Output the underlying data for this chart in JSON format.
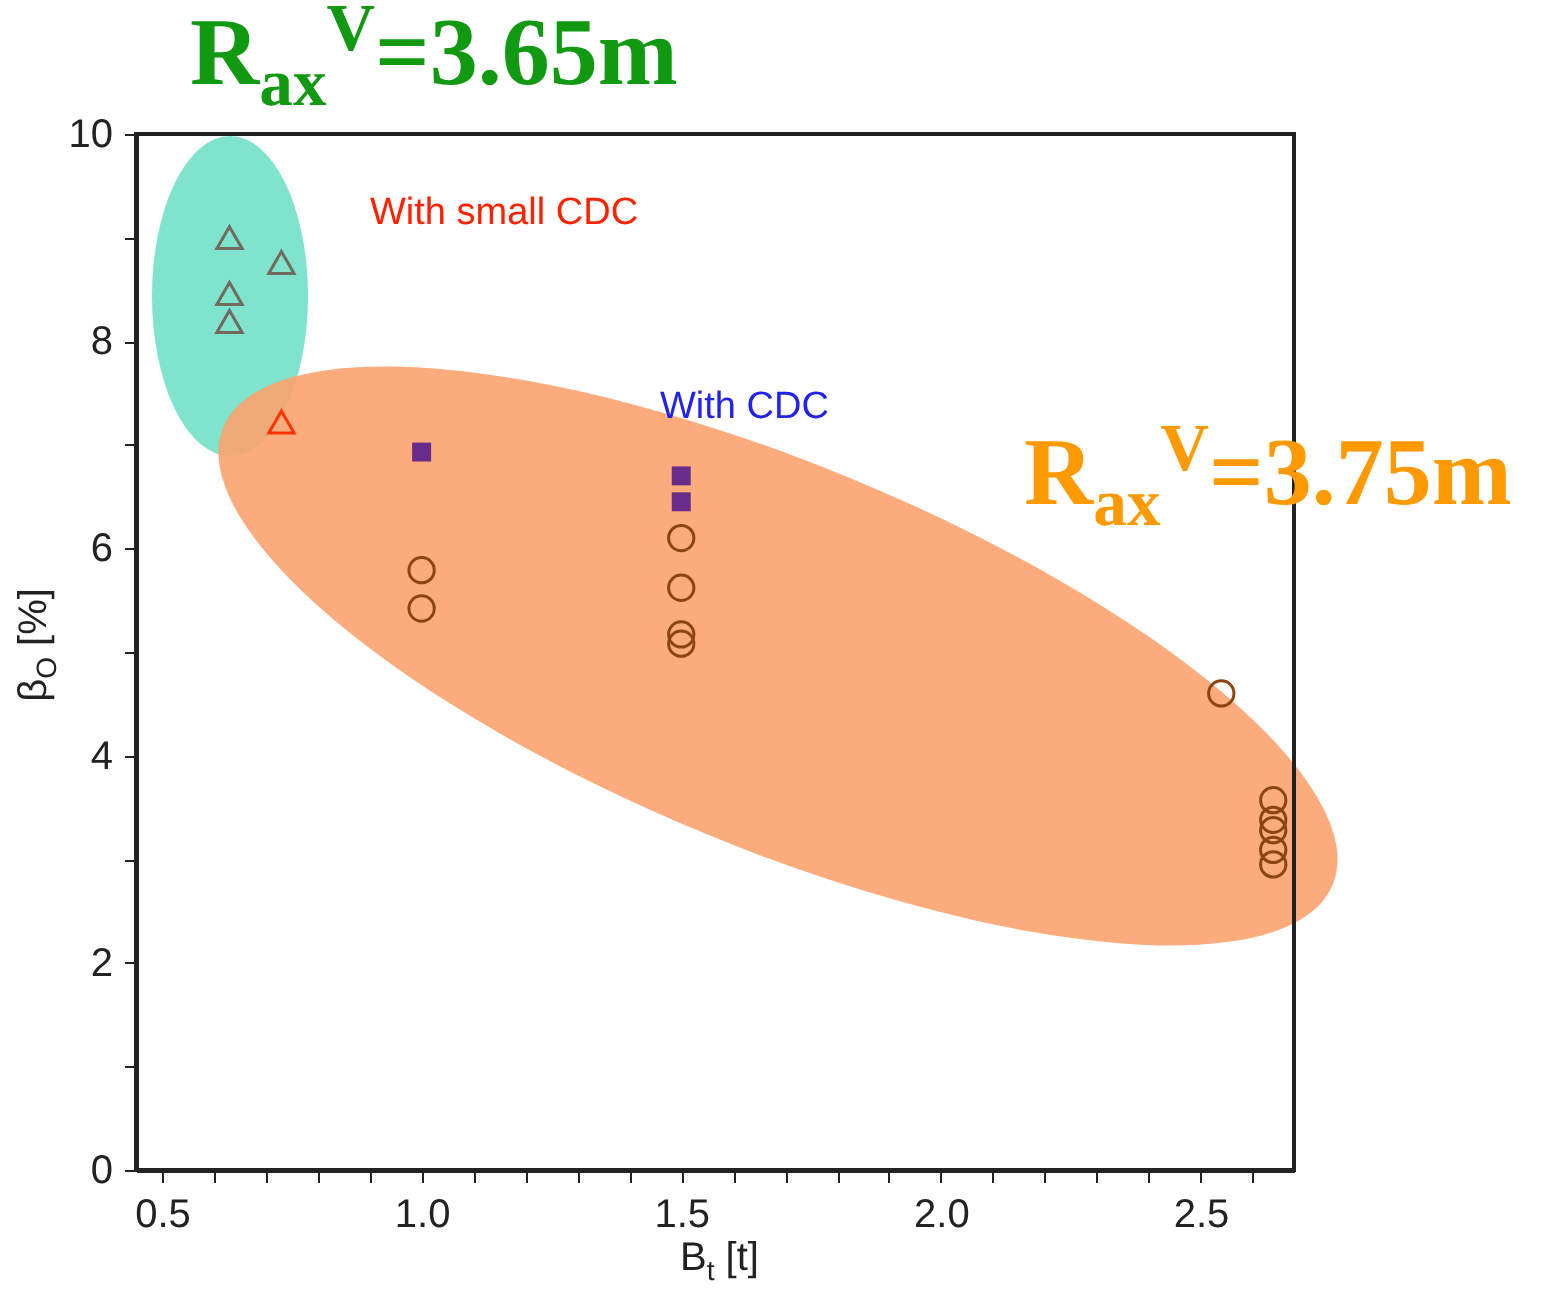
{
  "chart_data": {
    "type": "scatter",
    "xlabel": "B$_{t}$ [t]",
    "ylabel": "β$_{O}$ [%]",
    "xlim": [
      0.45,
      2.68
    ],
    "ylim": [
      0,
      10
    ],
    "xticks": [
      0.5,
      {
        "value": 0.6,
        "label": null
      },
      {
        "value": 0.7,
        "label": null
      },
      {
        "value": 0.8,
        "label": null
      },
      {
        "value": 0.9,
        "label": null
      },
      {
        "value": 1,
        "label": "1.0"
      },
      {
        "value": 1.1,
        "label": null
      },
      {
        "value": 1.2,
        "label": null
      },
      {
        "value": 1.3,
        "label": null
      },
      {
        "value": 1.4,
        "label": null
      },
      1.5,
      {
        "value": 1.6,
        "label": null
      },
      {
        "value": 1.7,
        "label": null
      },
      {
        "value": 1.8,
        "label": null
      },
      {
        "value": 1.9,
        "label": null
      },
      {
        "value": 2,
        "label": "2.0"
      },
      {
        "value": 2.1,
        "label": null
      },
      {
        "value": 2.2,
        "label": null
      },
      {
        "value": 2.3,
        "label": null
      },
      {
        "value": 2.4,
        "label": null
      },
      2.5,
      {
        "value": 2.6,
        "label": null
      }
    ],
    "yticks": [
      0,
      {
        "value": 1,
        "label": null
      },
      2,
      {
        "value": 3,
        "label": null
      },
      4,
      {
        "value": 5,
        "label": null
      },
      6,
      {
        "value": 7,
        "label": null
      },
      8,
      {
        "value": 9,
        "label": null
      },
      10
    ],
    "series": [
      {
        "color": "#6f6a5c",
        "marker": "triangle",
        "x": [
          0.63,
          0.63,
          0.63,
          0.73
        ],
        "values": [
          9.0,
          8.46,
          8.19,
          8.76
        ]
      },
      {
        "color": "#ff3300",
        "marker": "triangle",
        "x": [
          0.73
        ],
        "values": [
          7.22
        ]
      },
      {
        "color": "#6a2c8a",
        "marker": "square",
        "x": [
          1.0,
          1.5,
          1.5
        ],
        "values": [
          6.93,
          6.7,
          6.45
        ]
      },
      {
        "color": "#8b4513",
        "marker": "circle",
        "x": [
          1.0,
          1.0,
          1.5,
          1.5,
          1.5,
          1.5,
          2.54,
          2.64,
          2.64,
          2.64,
          2.64,
          2.64
        ],
        "values": [
          5.79,
          5.42,
          6.1,
          5.62,
          5.17,
          5.08,
          4.6,
          3.57,
          3.38,
          3.28,
          3.09,
          2.95
        ]
      }
    ],
    "annotations": [
      "R$_{ax}$$^{V}$=3.65m",
      "R$_{ax}$$^{V}$=3.75m",
      "With small CDC",
      "With CDC"
    ]
  }
}
